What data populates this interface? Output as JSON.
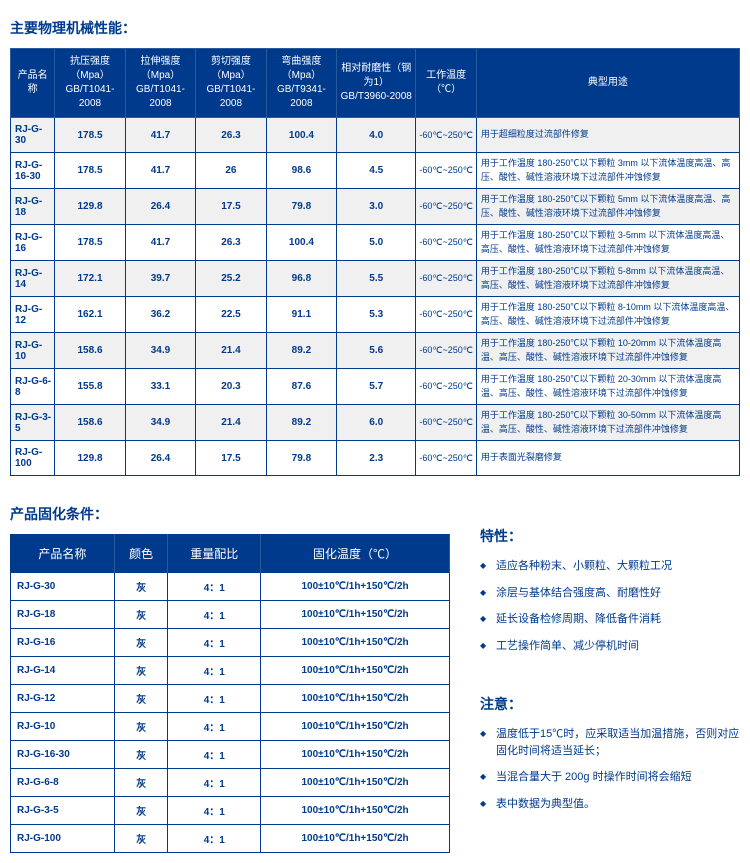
{
  "titles": {
    "t1": "主要物理机械性能：",
    "t2": "产品固化条件：",
    "t3": "特性：",
    "t4": "注意："
  },
  "mainHeaders": {
    "h0": "产品名称",
    "h1a": "抗压强度（Mpa）",
    "h1b": "GB/T1041-2008",
    "h2a": "拉伸强度（Mpa）",
    "h2b": "GB/T1041-2008",
    "h3a": "剪切强度（Mpa）",
    "h3b": "GB/T1041-2008",
    "h4a": "弯曲强度（Mpa）",
    "h4b": "GB/T9341-2008",
    "h5a": "相对耐磨性（钢为1）",
    "h5b": "GB/T3960-2008",
    "h6a": "工作温度",
    "h6b": "（℃）",
    "h7": "典型用途"
  },
  "rows": [
    {
      "name": "RJ-G-30",
      "c1": "178.5",
      "c2": "41.7",
      "c3": "26.3",
      "c4": "100.4",
      "c5": "4.0",
      "tr": "-60℃~250℃",
      "use": "用于超细粒度过流部件修复"
    },
    {
      "name": "RJ-G-16-30",
      "c1": "178.5",
      "c2": "41.7",
      "c3": "26",
      "c4": "98.6",
      "c5": "4.5",
      "tr": "-60℃~250℃",
      "use": "用于工作温度 180-250℃以下颗粒 3mm 以下流体温度高温、高压、酸性、碱性溶液环境下过流部件冲蚀修复"
    },
    {
      "name": "RJ-G-18",
      "c1": "129.8",
      "c2": "26.4",
      "c3": "17.5",
      "c4": "79.8",
      "c5": "3.0",
      "tr": "-60℃~250℃",
      "use": "用于工作温度 180-250℃以下颗粒 5mm 以下流体温度高温、高压、酸性、碱性溶液环境下过流部件冲蚀修复"
    },
    {
      "name": "RJ-G-16",
      "c1": "178.5",
      "c2": "41.7",
      "c3": "26.3",
      "c4": "100.4",
      "c5": "5.0",
      "tr": "-60℃~250℃",
      "use": "用于工作温度 180-250℃以下颗粒 3-5mm 以下流体温度高温、高压、酸性、碱性溶液环境下过流部件冲蚀修复"
    },
    {
      "name": "RJ-G-14",
      "c1": "172.1",
      "c2": "39.7",
      "c3": "25.2",
      "c4": "96.8",
      "c5": "5.5",
      "tr": "-60℃~250℃",
      "use": "用于工作温度 180-250℃以下颗粒 5-8mm 以下流体温度高温、高压、酸性、碱性溶液环境下过流部件冲蚀修复"
    },
    {
      "name": "RJ-G-12",
      "c1": "162.1",
      "c2": "36.2",
      "c3": "22.5",
      "c4": "91.1",
      "c5": "5.3",
      "tr": "-60℃~250℃",
      "use": "用于工作温度 180-250℃以下颗粒 8-10mm 以下流体温度高温、高压、酸性、碱性溶液环境下过流部件冲蚀修复"
    },
    {
      "name": "RJ-G-10",
      "c1": "158.6",
      "c2": "34.9",
      "c3": "21.4",
      "c4": "89.2",
      "c5": "5.6",
      "tr": "-60℃~250℃",
      "use": "用于工作温度 180-250℃以下颗粒 10-20mm 以下流体温度高温、高压、酸性、碱性溶液环境下过流部件冲蚀修复"
    },
    {
      "name": "RJ-G-6-8",
      "c1": "155.8",
      "c2": "33.1",
      "c3": "20.3",
      "c4": "87.6",
      "c5": "5.7",
      "tr": "-60℃~250℃",
      "use": "用于工作温度 180-250℃以下颗粒 20-30mm 以下流体温度高温、高压、酸性、碱性溶液环境下过流部件冲蚀修复"
    },
    {
      "name": "RJ-G-3-5",
      "c1": "158.6",
      "c2": "34.9",
      "c3": "21.4",
      "c4": "89.2",
      "c5": "6.0",
      "tr": "-60℃~250℃",
      "use": "用于工作温度 180-250℃以下颗粒 30-50mm 以下流体温度高温、高压、酸性、碱性溶液环境下过流部件冲蚀修复"
    },
    {
      "name": "RJ-G-100",
      "c1": "129.8",
      "c2": "26.4",
      "c3": "17.5",
      "c4": "79.8",
      "c5": "2.3",
      "tr": "-60℃~250℃",
      "use": "用于表面光裂磨修复"
    }
  ],
  "cureHeaders": {
    "h0": "产品名称",
    "h1": "颜色",
    "h2": "重量配比",
    "h3": "固化温度（℃）"
  },
  "cureRows": [
    {
      "n": "RJ-G-30",
      "c": "灰",
      "r": "4：1",
      "t": "100±10℃/1h+150℃/2h"
    },
    {
      "n": "RJ-G-18",
      "c": "灰",
      "r": "4：1",
      "t": "100±10℃/1h+150℃/2h"
    },
    {
      "n": "RJ-G-16",
      "c": "灰",
      "r": "4：1",
      "t": "100±10℃/1h+150℃/2h"
    },
    {
      "n": "RJ-G-14",
      "c": "灰",
      "r": "4：1",
      "t": "100±10℃/1h+150℃/2h"
    },
    {
      "n": "RJ-G-12",
      "c": "灰",
      "r": "4：1",
      "t": "100±10℃/1h+150℃/2h"
    },
    {
      "n": "RJ-G-10",
      "c": "灰",
      "r": "4：1",
      "t": "100±10℃/1h+150℃/2h"
    },
    {
      "n": "RJ-G-16-30",
      "c": "灰",
      "r": "4：1",
      "t": "100±10℃/1h+150℃/2h"
    },
    {
      "n": "RJ-G-6-8",
      "c": "灰",
      "r": "4：1",
      "t": "100±10℃/1h+150℃/2h"
    },
    {
      "n": "RJ-G-3-5",
      "c": "灰",
      "r": "4：1",
      "t": "100±10℃/1h+150℃/2h"
    },
    {
      "n": "RJ-G-100",
      "c": "灰",
      "r": "4：1",
      "t": "100±10℃/1h+150℃/2h"
    }
  ],
  "features": [
    "适应各种粉末、小颗粒、大颗粒工况",
    "涂层与基体结合强度高、耐磨性好",
    "延长设备检修周期、降低备件消耗",
    "工艺操作简单、减少停机时间"
  ],
  "notes": [
    "温度低于15℃时，应采取适当加温措施，否则对应固化时间将适当延长；",
    "当混合量大于 200g 时操作时间将会缩短",
    "表中数据为典型值。"
  ],
  "style": {
    "headerBg": "#003a8c",
    "borderColor": "#003a8c",
    "textBlue": "#003a8c",
    "altBg": "#f0f0f0"
  }
}
